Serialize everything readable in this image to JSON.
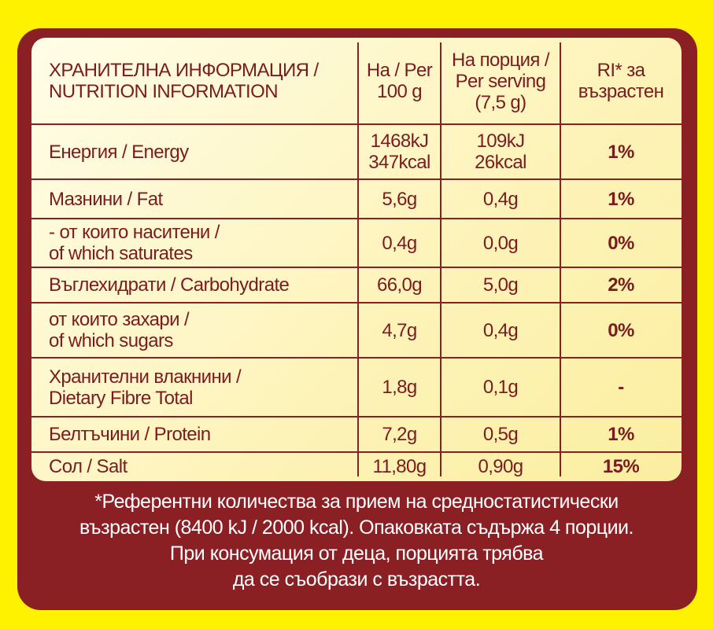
{
  "table": {
    "header": [
      [
        "ХРАНИТЕЛНА ИНФОРМАЦИЯ /",
        "NUTRITION INFORMATION"
      ],
      [
        "На / Per",
        "100 g"
      ],
      [
        "На порция /",
        "Per serving",
        "(7,5 g)"
      ],
      [
        "RI* за",
        "възрастен"
      ]
    ],
    "rows": [
      [
        [
          "Енергия / Energy"
        ],
        [
          "1468kJ",
          "347kcal"
        ],
        [
          "109kJ",
          "26kcal"
        ],
        [
          "1%"
        ]
      ],
      [
        [
          "Мазнини / Fat"
        ],
        [
          "5,6g"
        ],
        [
          "0,4g"
        ],
        [
          "1%"
        ]
      ],
      [
        [
          "- от които наситени /",
          "of which saturates"
        ],
        [
          "0,4g"
        ],
        [
          "0,0g"
        ],
        [
          "0%"
        ]
      ],
      [
        [
          "Въглехидрати / Carbohydrate"
        ],
        [
          "66,0g"
        ],
        [
          "5,0g"
        ],
        [
          "2%"
        ]
      ],
      [
        [
          "от които захари /",
          "of which sugars"
        ],
        [
          "4,7g"
        ],
        [
          "0,4g"
        ],
        [
          "0%"
        ]
      ],
      [
        [
          "Хранителни влакнини /",
          "Dietary Fibre Total"
        ],
        [
          "1,8g"
        ],
        [
          "0,1g"
        ],
        [
          "-"
        ]
      ],
      [
        [
          "Белтъчини / Protein"
        ],
        [
          "7,2g"
        ],
        [
          "0,5g"
        ],
        [
          "1%"
        ]
      ],
      [
        [
          "Сол / Salt"
        ],
        [
          "11,80g"
        ],
        [
          "0,90g"
        ],
        [
          "15%"
        ]
      ]
    ]
  },
  "footer": [
    "*Референтни количества за прием на средностатистически",
    "възрастен (8400 kJ / 2000 kcal). Опаковката съдържа 4 порции.",
    "При консумация от деца,  порцията трябва",
    "да се съобрази с възрастта."
  ]
}
